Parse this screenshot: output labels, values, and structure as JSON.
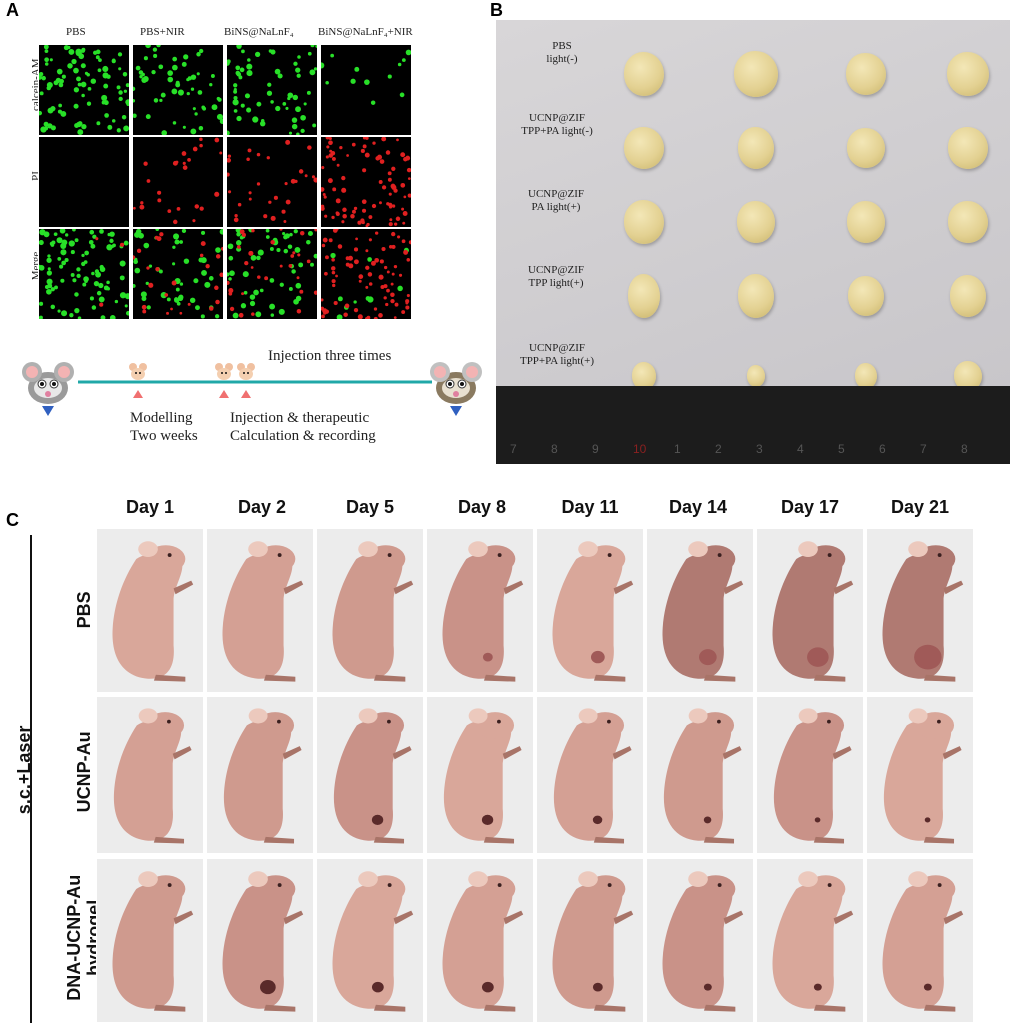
{
  "panels": {
    "a": "A",
    "b": "B",
    "c": "C"
  },
  "panel_a": {
    "columns": [
      "PBS",
      "PBS+NIR",
      "BiNS@NaLnF₄",
      "BiNS@NaLnF₄+NIR"
    ],
    "rows": [
      "calcein-AM",
      "PI",
      "Merge"
    ],
    "colors": {
      "live": "#28e028",
      "dead": "#e02020",
      "background": "#000000"
    }
  },
  "timeline": {
    "top_label": "Injection three times",
    "label_1": "Modelling",
    "label_2": "Two weeks",
    "label_3": "Injection & therapeutic",
    "label_4": "Calculation & recording",
    "line_color": "#20a8a8",
    "marker_color": "#f07070"
  },
  "panel_b": {
    "rows": [
      {
        "line1": "PBS",
        "line2": "light(-)"
      },
      {
        "line1": "UCNP@ZIF",
        "line2": "TPP+PA light(-)"
      },
      {
        "line1": "UCNP@ZIF",
        "line2": "PA light(+)"
      },
      {
        "line1": "UCNP@ZIF",
        "line2": "TPP light(+)"
      },
      {
        "line1": "UCNP@ZIF",
        "line2": "TPP+PA light(+)"
      }
    ],
    "ruler_numbers": [
      "7",
      "8",
      "9",
      "10",
      "1",
      "2",
      "3",
      "4",
      "5",
      "6",
      "7",
      "8"
    ]
  },
  "panel_c": {
    "days": [
      "Day 1",
      "Day 2",
      "Day 5",
      "Day 8",
      "Day 11",
      "Day 14",
      "Day 17",
      "Day 21"
    ],
    "group_label": "s.c.+Laser",
    "rows": [
      "PBS",
      "UCNP-Au",
      "DNA-UCNP-Au hydrogel"
    ],
    "row_label_lines": {
      "dna_line1": "DNA-UCNP-Au",
      "dna_line2": "hydrogel"
    },
    "colors": {
      "skin": "#d9a79a",
      "skin_dark": "#a87468",
      "tumor": "#5a2a2a"
    }
  }
}
